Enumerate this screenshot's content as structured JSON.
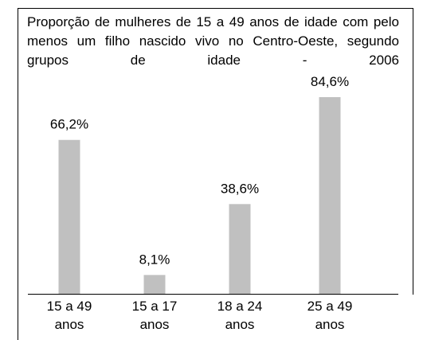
{
  "chart_data": {
    "type": "bar",
    "title": "Proporção de mulheres de 15 a 49 anos de idade com pelo menos um filho nascido vivo no Centro-Oeste, segundo grupos de idade - 2006",
    "categories": [
      "15 a 49 anos",
      "15 a 17 anos",
      "18 a 24 anos",
      "25 a 49 anos"
    ],
    "values": [
      66.2,
      8.1,
      38.6,
      84.6
    ],
    "value_labels": [
      "66,2%",
      "8,1%",
      "38,6%",
      "84,6%"
    ],
    "color": "#c0c0c0"
  }
}
